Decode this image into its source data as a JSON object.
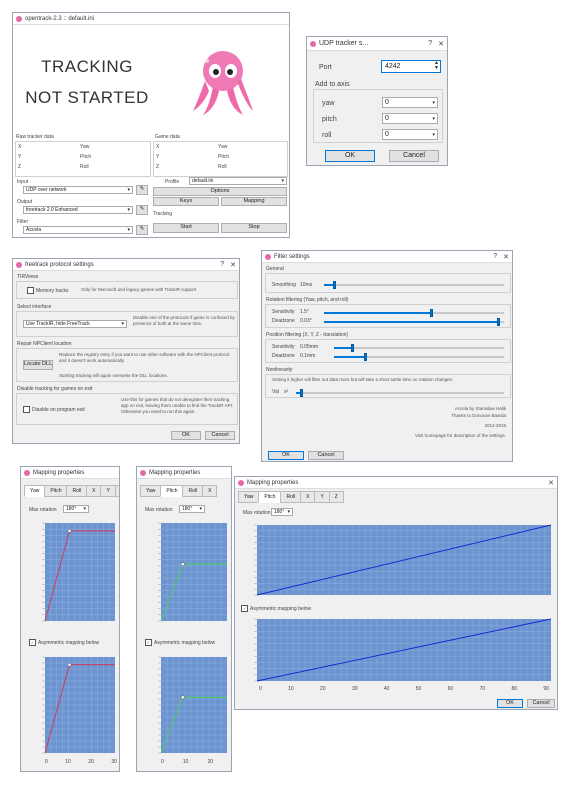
{
  "main": {
    "title": "opentrack-2.3 :: default.ini",
    "status_line1": "TRACKING",
    "status_line2": "NOT STARTED",
    "raw_title": "Raw tracker data",
    "game_title": "Game data",
    "axes_left": [
      "X",
      "Y",
      "Z"
    ],
    "axes_right": [
      "Yaw",
      "Pitch",
      "Roll"
    ],
    "input_label": "Input",
    "input_value": "UDP over network",
    "output_label": "Output",
    "output_value": "freetrack 2.0 Enhanced",
    "filter_label": "Filter",
    "filter_value": "Accela",
    "profile_label": "Profile",
    "profile_value": "default.ini",
    "options_label": "Options",
    "keys_label": "Keys",
    "mapping_label": "Mapping",
    "tracking_label": "Tracking",
    "start_label": "Start",
    "stop_label": "Stop"
  },
  "udp": {
    "title": "UDP tracker s...",
    "help": "?",
    "port_label": "Port",
    "port_value": "4242",
    "add_to_axis": "Add to axis",
    "rows": [
      {
        "label": "yaw",
        "value": "0"
      },
      {
        "label": "pitch",
        "value": "0"
      },
      {
        "label": "roll",
        "value": "0"
      }
    ],
    "ok_label": "OK",
    "cancel_label": "Cancel"
  },
  "freetrack": {
    "title": "freetrack protocol settings",
    "help": "?",
    "trackir_title": "TIRViews",
    "trackir_check": "Memory hacks",
    "trackir_note": "Only for Microsoft and legacy games with TrackIR support",
    "select_title": "Select interface",
    "select_value": "Use TrackIR, hide FreeTrack",
    "select_note": "Disable one of the protocols if game is confused by presence of both at the same time.",
    "repair_title": "Repair NPClient location",
    "locate_label": "Locate DLL",
    "repair_note": "Replace the registry entry if you want to use other software with the NPClient protocol and it doesn't work automatically.",
    "repair_note2": "Starting tracking will again overwrite the DLL locations.",
    "disable_title": "Disable tracking for games on exit",
    "disable_check": "Disable on program exit",
    "disable_note": "Use this for games that do not deregister their tracking app on exit, leaving them unable to find the TrackIR API. Otherwise you need to run this again.",
    "ok_label": "OK",
    "cancel_label": "Cancel"
  },
  "filter": {
    "title": "Filter settings",
    "help": "?",
    "general": "General",
    "smoothing_label": "Smoothing",
    "smoothing_value": "10ms",
    "smoothing_level": 0.05,
    "rot_title": "Rotation filtering (Yaw, pitch, and roll)",
    "rot_sens_label": "Sensitivity",
    "rot_sens_value": "1.5°",
    "rot_sens_level": 0.6,
    "rot_dz_label": "Deadzone",
    "rot_dz_value": "0.03°",
    "rot_dz_level": 0.98,
    "pos_title": "Position filtering (X, Y, Z - translation)",
    "pos_sens_label": "Sensitivity",
    "pos_sens_value": "0.05mm",
    "pos_sens_level": 0.1,
    "pos_dz_label": "Deadzone",
    "pos_dz_value": "0.1mm",
    "pos_dz_level": 0.18,
    "nonlin_title": "Nonlinearity",
    "nonlin_note": "Setting it higher will filter out data more but will take a short settle time on rotation changes.",
    "nonlin_label": "Val",
    "nonlin_value": "x²",
    "nonlin_level": 0.02,
    "credit1": "Accela by Stanislaw Halik",
    "credit2": "Thanks to Donovan Baarda",
    "credit_years": "2012-2015",
    "help_note": "Visit homepage for description of the settings.",
    "ok_label": "OK",
    "cancel_label": "Cancel"
  },
  "mapping1": {
    "title": "Mapping properties",
    "tabs": [
      "Yaw",
      "Pitch",
      "Roll",
      "X",
      "Y",
      "Z"
    ],
    "max_rotation_label": "Max rotation",
    "max_rotation_value": "180°",
    "invert_label": "Asymmetric mapping below",
    "x_ticks": [
      "0",
      "10",
      "20",
      "30"
    ],
    "color": "#d03a5a"
  },
  "mapping2": {
    "title": "Mapping properties",
    "tabs": [
      "Yaw",
      "Pitch",
      "Roll",
      "X"
    ],
    "max_rotation_label": "Max rotation",
    "max_rotation_value": "180°",
    "invert_label": "Asymmetric mapping below",
    "x_ticks": [
      "0",
      "10",
      "20"
    ],
    "color": "#4ad05a"
  },
  "mapping3": {
    "title": "Mapping properties",
    "tabs": [
      "Yaw",
      "Pitch",
      "Roll",
      "X",
      "Y",
      "Z"
    ],
    "max_rotation_label": "Max rotation",
    "max_rotation_value": "180°",
    "invert_label": "Asymmetric mapping below",
    "x_ticks": [
      "0",
      "10",
      "20",
      "30",
      "40",
      "50",
      "60",
      "70",
      "80",
      "90"
    ],
    "ok_label": "OK",
    "cancel_label": "Cancel",
    "color": "#1a2ad0"
  }
}
